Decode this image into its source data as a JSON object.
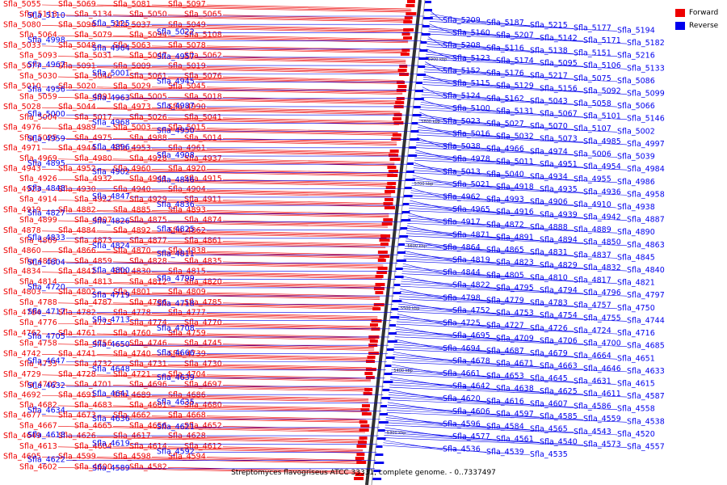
{
  "caption": "Streptomyces flavogriseus ATCC 33331, complete genome. - 0..7337497",
  "legend": [
    {
      "label": "Forward",
      "color": "#ee0000"
    },
    {
      "label": "Reverse",
      "color": "#0000ee"
    }
  ],
  "colors": {
    "forward": "#ee0000",
    "reverse": "#0000ee",
    "backbone": "#333333"
  },
  "scale_ticks": [
    "5900 kbp",
    "5800 kbp",
    "5700 kbp",
    "5600 kbp",
    "5500 kbp",
    "5400 kbp",
    "5300 kbp"
  ],
  "forward_labels": [
    "Sfla_5055",
    "Sfla_5069",
    "Sfla_5081",
    "Sfla_5097",
    "Sfla_5118",
    "Sfla_5134",
    "Sfla_5050",
    "Sfla_5065",
    "Sfla_5080",
    "Sfla_5096",
    "Sfla_5037",
    "Sfla_5049",
    "Sfla_5064",
    "Sfla_5079",
    "Sfla_5094",
    "Sfla_5108",
    "Sfla_5033",
    "Sfla_5048",
    "Sfla_5063",
    "Sfla_5078",
    "Sfla_5093",
    "Sfla_5031",
    "Sfla_5047",
    "Sfla_5062",
    "Sfla_5077",
    "Sfla_5091",
    "Sfla_5009",
    "Sfla_5019",
    "Sfla_5030",
    "Sfla_5046",
    "Sfla_5061",
    "Sfla_5076",
    "Sfla_5010",
    "Sfla_5020",
    "Sfla_5029",
    "Sfla_5045",
    "Sfla_5059",
    "Sfla_4991",
    "Sfla_5005",
    "Sfla_5018",
    "Sfla_5028",
    "Sfla_5044",
    "Sfla_4973",
    "Sfla_4990",
    "Sfla_5004",
    "Sfla_5017",
    "Sfla_5026",
    "Sfla_5041",
    "Sfla_4976",
    "Sfla_4989",
    "Sfla_5003",
    "Sfla_5015",
    "Sfla_5025",
    "Sfla_4975",
    "Sfla_4988",
    "Sfla_5014",
    "Sfla_4971",
    "Sfla_4944",
    "Sfla_4953",
    "Sfla_4961",
    "Sfla_4969",
    "Sfla_4980",
    "Sfla_4928",
    "Sfla_4937",
    "Sfla_4943",
    "Sfla_4952",
    "Sfla_4960",
    "Sfla_4920",
    "Sfla_4926",
    "Sfla_4932",
    "Sfla_4941",
    "Sfla_4915",
    "Sfla_4923",
    "Sfla_4930",
    "Sfla_4940",
    "Sfla_4904",
    "Sfla_4914",
    "Sfla_4922",
    "Sfla_4929",
    "Sfla_4911",
    "Sfla_4919",
    "Sfla_4882",
    "Sfla_4885",
    "Sfla_4893",
    "Sfla_4899",
    "Sfla_4907",
    "Sfla_4875",
    "Sfla_4874",
    "Sfla_4878",
    "Sfla_4884",
    "Sfla_4892",
    "Sfla_4862",
    "Sfla_4869",
    "Sfla_4873",
    "Sfla_4877",
    "Sfla_4861",
    "Sfla_4860",
    "Sfla_4866",
    "Sfla_4870",
    "Sfla_4838",
    "Sfla_4853",
    "Sfla_4859",
    "Sfla_4828",
    "Sfla_4835",
    "Sfla_4834",
    "Sfla_4842",
    "Sfla_4830",
    "Sfla_4815",
    "Sfla_4814",
    "Sfla_4813",
    "Sfla_4812",
    "Sfla_4820",
    "Sfla_4803",
    "Sfla_4802",
    "Sfla_4801",
    "Sfla_4809",
    "Sfla_4788",
    "Sfla_4787",
    "Sfla_4786",
    "Sfla_4785",
    "Sfla_4784",
    "Sfla_4782",
    "Sfla_4778",
    "Sfla_4777",
    "Sfla_4776",
    "Sfla_4775",
    "Sfla_4774",
    "Sfla_4770",
    "Sfla_4762",
    "Sfla_4761",
    "Sfla_4760",
    "Sfla_4759",
    "Sfla_4758",
    "Sfla_4756",
    "Sfla_4746",
    "Sfla_4745",
    "Sfla_4742",
    "Sfla_4741",
    "Sfla_4740",
    "Sfla_4739",
    "Sfla_4733",
    "Sfla_4732",
    "Sfla_4731",
    "Sfla_4730",
    "Sfla_4729",
    "Sfla_4728",
    "Sfla_4721",
    "Sfla_4704",
    "Sfla_4702",
    "Sfla_4701",
    "Sfla_4696",
    "Sfla_4697",
    "Sfla_4692",
    "Sfla_4691",
    "Sfla_4689",
    "Sfla_4686",
    "Sfla_4682",
    "Sfla_4683",
    "Sfla_4681",
    "Sfla_4680",
    "Sfla_4677",
    "Sfla_4673",
    "Sfla_4662",
    "Sfla_4668",
    "Sfla_4667",
    "Sfla_4665",
    "Sfla_4656",
    "Sfla_4652",
    "Sfla_4649",
    "Sfla_4626",
    "Sfla_4617",
    "Sfla_4628",
    "Sfla_4613",
    "Sfla_4604",
    "Sfla_4614",
    "Sfla_4612",
    "Sfla_4605",
    "Sfla_4599",
    "Sfla_4598",
    "Sfla_4594",
    "Sfla_4602",
    "Sfla_4600",
    "Sfla_4582"
  ],
  "reverse_labels": [
    "Sfla_5110",
    "Sfla_5125",
    "Sfla_5022",
    "Sfla_4998",
    "Sfla_4964",
    "Sfla_4957",
    "Sfla_4967",
    "Sfla_5001",
    "Sfla_4945",
    "Sfla_4956",
    "Sfla_4963",
    "Sfla_4987",
    "Sfla_5000",
    "Sfla_4968",
    "Sfla_4950",
    "Sfla_4959",
    "Sfla_4896",
    "Sfla_4908",
    "Sfla_4895",
    "Sfla_4902",
    "Sfla_4846",
    "Sfla_4848",
    "Sfla_4847",
    "Sfla_4836",
    "Sfla_4827",
    "Sfla_4826",
    "Sfla_4825",
    "Sfla_4833",
    "Sfla_4824",
    "Sfla_4811",
    "Sfla_4804",
    "Sfla_4800",
    "Sfla_4799",
    "Sfla_4720",
    "Sfla_4719",
    "Sfla_4718",
    "Sfla_4717",
    "Sfla_4713",
    "Sfla_4708",
    "Sfla_4705",
    "Sfla_4650",
    "Sfla_4666",
    "Sfla_4647",
    "Sfla_4648",
    "Sfla_4639",
    "Sfla_4632",
    "Sfla_4641",
    "Sfla_4635",
    "Sfla_4634",
    "Sfla_4636",
    "Sfla_4621",
    "Sfla_4618",
    "Sfla_4619",
    "Sfla_4592",
    "Sfla_4622",
    "Sfla_4589",
    "Sfla_5209",
    "Sfla_5187",
    "Sfla_5215",
    "Sfla_5177",
    "Sfla_5194",
    "Sfla_5160",
    "Sfla_5207",
    "Sfla_5142",
    "Sfla_5171",
    "Sfla_5182",
    "Sfla_5208",
    "Sfla_5116",
    "Sfla_5138",
    "Sfla_5151",
    "Sfla_5216",
    "Sfla_5123",
    "Sfla_5174",
    "Sfla_5095",
    "Sfla_5106",
    "Sfla_5133",
    "Sfla_5152",
    "Sfla_5176",
    "Sfla_5217",
    "Sfla_5075",
    "Sfla_5086",
    "Sfla_5115",
    "Sfla_5129",
    "Sfla_5156",
    "Sfla_5092",
    "Sfla_5099",
    "Sfla_5124",
    "Sfla_5162",
    "Sfla_5043",
    "Sfla_5058",
    "Sfla_5066",
    "Sfla_5100",
    "Sfla_5131",
    "Sfla_5067",
    "Sfla_5101",
    "Sfla_5146",
    "Sfla_5023",
    "Sfla_5027",
    "Sfla_5070",
    "Sfla_5107",
    "Sfla_5002",
    "Sfla_5016",
    "Sfla_5032",
    "Sfla_5073",
    "Sfla_4985",
    "Sfla_4997",
    "Sfla_5038",
    "Sfla_4966",
    "Sfla_4974",
    "Sfla_5006",
    "Sfla_5039",
    "Sfla_4978",
    "Sfla_5011",
    "Sfla_4951",
    "Sfla_4954",
    "Sfla_4984",
    "Sfla_5013",
    "Sfla_5040",
    "Sfla_4934",
    "Sfla_4955",
    "Sfla_4986",
    "Sfla_5021",
    "Sfla_4918",
    "Sfla_4935",
    "Sfla_4936",
    "Sfla_4958",
    "Sfla_4962",
    "Sfla_4993",
    "Sfla_4906",
    "Sfla_4910",
    "Sfla_4938",
    "Sfla_4965",
    "Sfla_4916",
    "Sfla_4939",
    "Sfla_4942",
    "Sfla_4887",
    "Sfla_4917",
    "Sfla_4872",
    "Sfla_4888",
    "Sfla_4889",
    "Sfla_4890",
    "Sfla_4871",
    "Sfla_4891",
    "Sfla_4894",
    "Sfla_4850",
    "Sfla_4863",
    "Sfla_4864",
    "Sfla_4865",
    "Sfla_4831",
    "Sfla_4837",
    "Sfla_4845",
    "Sfla_4819",
    "Sfla_4823",
    "Sfla_4829",
    "Sfla_4832",
    "Sfla_4840",
    "Sfla_4844",
    "Sfla_4805",
    "Sfla_4810",
    "Sfla_4817",
    "Sfla_4821",
    "Sfla_4822",
    "Sfla_4795",
    "Sfla_4794",
    "Sfla_4796",
    "Sfla_4797",
    "Sfla_4798",
    "Sfla_4779",
    "Sfla_4783",
    "Sfla_4757",
    "Sfla_4750",
    "Sfla_4752",
    "Sfla_4753",
    "Sfla_4754",
    "Sfla_4755",
    "Sfla_4744",
    "Sfla_4725",
    "Sfla_4727",
    "Sfla_4726",
    "Sfla_4724",
    "Sfla_4716",
    "Sfla_4695",
    "Sfla_4709",
    "Sfla_4706",
    "Sfla_4700",
    "Sfla_4685",
    "Sfla_4694",
    "Sfla_4687",
    "Sfla_4679",
    "Sfla_4664",
    "Sfla_4651",
    "Sfla_4678",
    "Sfla_4671",
    "Sfla_4663",
    "Sfla_4646",
    "Sfla_4633",
    "Sfla_4661",
    "Sfla_4653",
    "Sfla_4645",
    "Sfla_4631",
    "Sfla_4615",
    "Sfla_4642",
    "Sfla_4638",
    "Sfla_4625",
    "Sfla_4611",
    "Sfla_4587",
    "Sfla_4620",
    "Sfla_4616",
    "Sfla_4607",
    "Sfla_4586",
    "Sfla_4558",
    "Sfla_4606",
    "Sfla_4597",
    "Sfla_4585",
    "Sfla_4559",
    "Sfla_4538",
    "Sfla_4596",
    "Sfla_4584",
    "Sfla_4565",
    "Sfla_4543",
    "Sfla_4520",
    "Sfla_4577",
    "Sfla_4561",
    "Sfla_4540",
    "Sfla_4573",
    "Sfla_4557",
    "Sfla_4536",
    "Sfla_4539",
    "Sfla_4535"
  ]
}
